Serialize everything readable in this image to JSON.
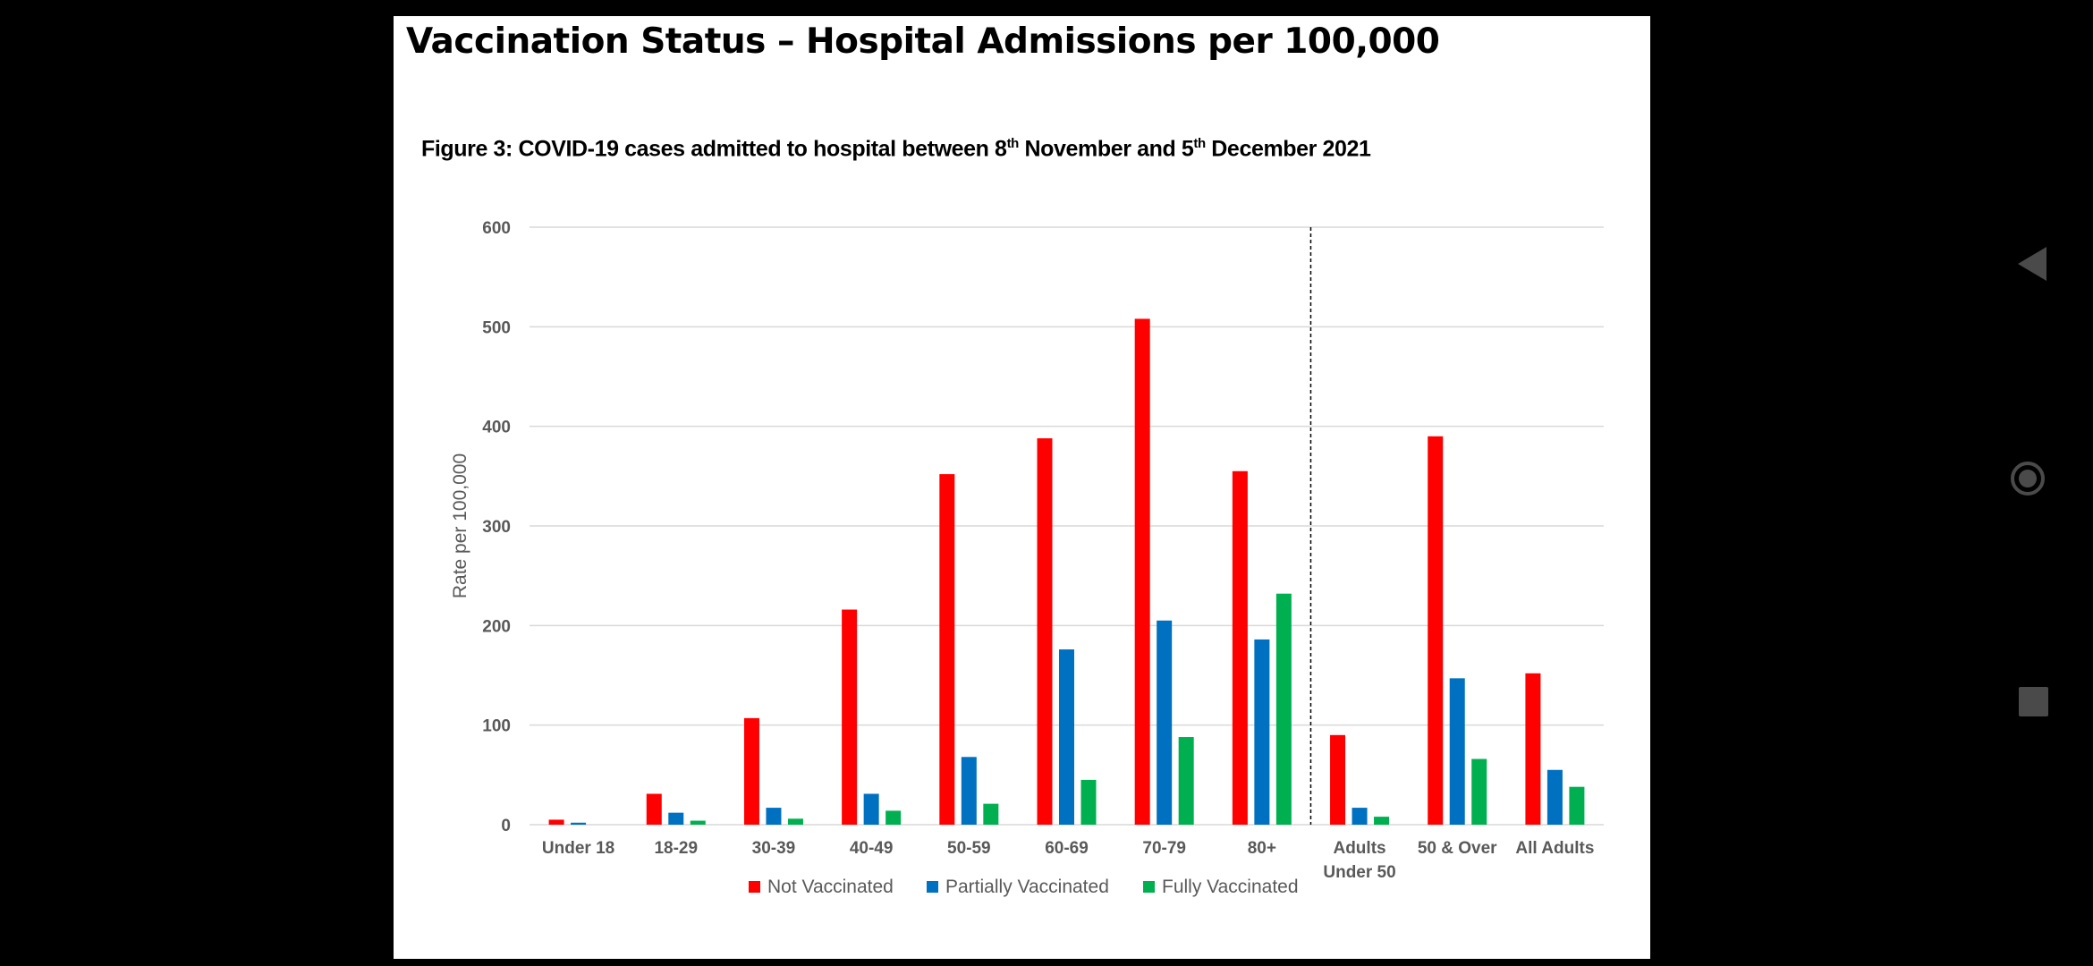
{
  "slide": {
    "title": "Vaccination Status – Hospital Admissions per 100,000"
  },
  "figure": {
    "caption_part1": "Figure 3: COVID-19 cases admitted to hospital between 8",
    "caption_sup1": "th",
    "caption_part2": " November and 5",
    "caption_sup2": "th",
    "caption_part3": " December 2021"
  },
  "chart_data": {
    "type": "bar",
    "title": "",
    "xlabel": "",
    "ylabel": "Rate per 100,000",
    "ylim": [
      0,
      600
    ],
    "yticks": [
      0,
      100,
      200,
      300,
      400,
      500,
      600
    ],
    "grid": true,
    "legend_position": "bottom",
    "divider_after_category_index": 7,
    "categories": [
      [
        "Under 18"
      ],
      [
        "18-29"
      ],
      [
        "30-39"
      ],
      [
        "40-49"
      ],
      [
        "50-59"
      ],
      [
        "60-69"
      ],
      [
        "70-79"
      ],
      [
        "80+"
      ],
      [
        "Adults",
        "Under 50"
      ],
      [
        "50 & Over"
      ],
      [
        "All Adults"
      ]
    ],
    "series": [
      {
        "name": "Not Vaccinated",
        "color": "#ff0000",
        "values": [
          5,
          31,
          107,
          216,
          352,
          388,
          508,
          355,
          90,
          390,
          152
        ]
      },
      {
        "name": "Partially Vaccinated",
        "color": "#0070c0",
        "values": [
          2,
          12,
          17,
          31,
          68,
          176,
          205,
          186,
          17,
          147,
          55
        ]
      },
      {
        "name": "Fully Vaccinated",
        "color": "#00b050",
        "values": [
          0,
          4,
          6,
          14,
          21,
          45,
          88,
          232,
          8,
          66,
          38
        ]
      }
    ]
  },
  "nav": {
    "back_icon": "back-triangle-icon",
    "home_icon": "home-circle-icon",
    "recent_icon": "recent-square-icon"
  }
}
